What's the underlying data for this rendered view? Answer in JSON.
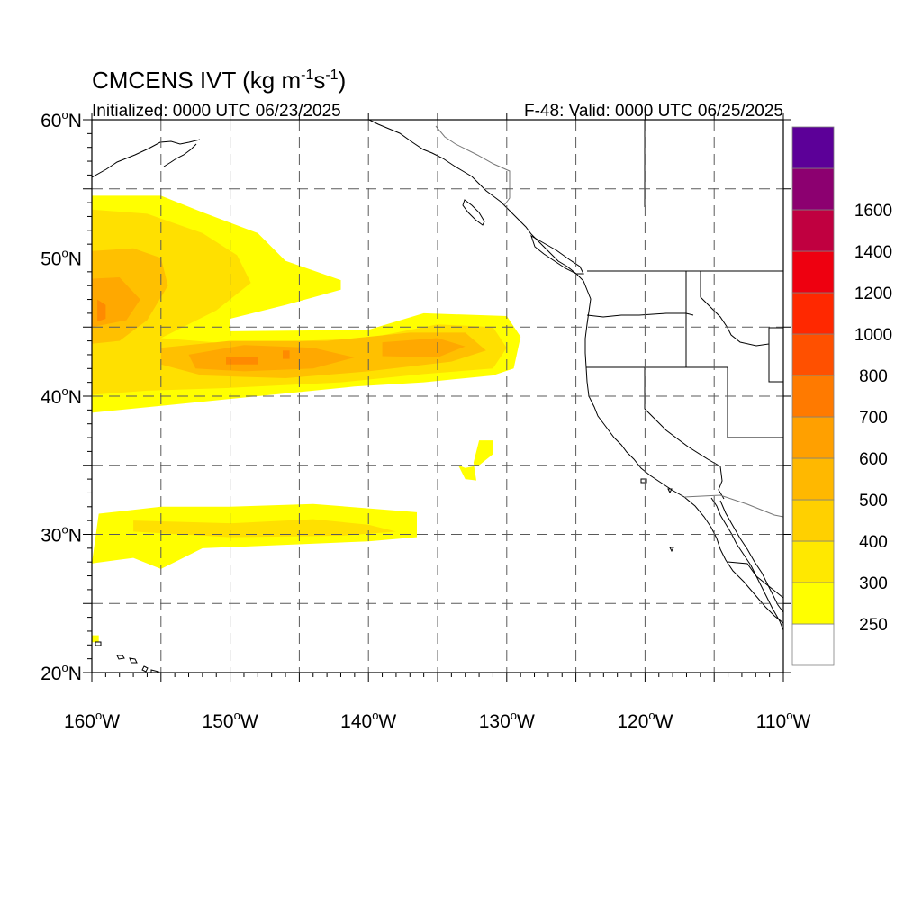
{
  "title": {
    "main": "CMCENS IVT (kg m",
    "exp1": "-1",
    "mid": "s",
    "exp2": "-1",
    "close": ")"
  },
  "subtitle_left": "Initialized: 0000 UTC 06/23/2025",
  "subtitle_right": "F-48: Valid: 0000 UTC 06/25/2025",
  "map": {
    "lon_range": [
      -160,
      -110
    ],
    "lat_range": [
      20,
      60
    ],
    "grid": "dashed",
    "lat_labels": [
      {
        "lat": 60,
        "num": "60",
        "hem": "N"
      },
      {
        "lat": 50,
        "num": "50",
        "hem": "N"
      },
      {
        "lat": 40,
        "num": "40",
        "hem": "N"
      },
      {
        "lat": 30,
        "num": "30",
        "hem": "N"
      },
      {
        "lat": 20,
        "num": "20",
        "hem": "N"
      }
    ],
    "lon_labels": [
      {
        "lon": -160,
        "num": "160",
        "hem": "W"
      },
      {
        "lon": -150,
        "num": "150",
        "hem": "W"
      },
      {
        "lon": -140,
        "num": "140",
        "hem": "W"
      },
      {
        "lon": -130,
        "num": "130",
        "hem": "W"
      },
      {
        "lon": -120,
        "num": "120",
        "hem": "W"
      },
      {
        "lon": -110,
        "num": "110",
        "hem": "W"
      }
    ],
    "ivt_regions": [
      {
        "level": 250,
        "color": "#ffff00",
        "points": [
          [
            -160,
            54.5
          ],
          [
            -155,
            54.5
          ],
          [
            -152,
            53.3
          ],
          [
            -148,
            51.8
          ],
          [
            -146,
            49.8
          ],
          [
            -142,
            48.4
          ],
          [
            -142,
            47.7
          ],
          [
            -146,
            46.6
          ],
          [
            -150,
            45.6
          ],
          [
            -150,
            44.7
          ],
          [
            -140,
            44.8
          ],
          [
            -136,
            46
          ],
          [
            -130,
            45.8
          ],
          [
            -129,
            44.3
          ],
          [
            -129.5,
            42
          ],
          [
            -131,
            41.5
          ],
          [
            -136,
            41
          ],
          [
            -141,
            40.7
          ],
          [
            -148,
            40
          ],
          [
            -155,
            39.3
          ],
          [
            -160,
            38.8
          ]
        ]
      },
      {
        "level": 300,
        "color": "#ffe000",
        "points": [
          [
            -160,
            53.5
          ],
          [
            -156,
            53.2
          ],
          [
            -152,
            51.8
          ],
          [
            -149.5,
            50.2
          ],
          [
            -148.5,
            48.2
          ],
          [
            -151,
            46.2
          ],
          [
            -155,
            44.2
          ],
          [
            -150,
            43.8
          ],
          [
            -140,
            44.2
          ],
          [
            -135,
            45.2
          ],
          [
            -131,
            45
          ],
          [
            -130,
            43.5
          ],
          [
            -131,
            42
          ],
          [
            -136,
            41.6
          ],
          [
            -142,
            41
          ],
          [
            -150,
            40.6
          ],
          [
            -156,
            40.4
          ],
          [
            -160,
            40.1
          ]
        ]
      },
      {
        "level": 400,
        "color": "#ffc000",
        "points": [
          [
            -160,
            50.5
          ],
          [
            -157,
            50.7
          ],
          [
            -155,
            50
          ],
          [
            -154.5,
            48
          ],
          [
            -156,
            45.5
          ],
          [
            -158,
            44
          ],
          [
            -160,
            43.8
          ]
        ]
      },
      {
        "level": 400,
        "color": "#ffc000",
        "points": [
          [
            -155,
            43.5
          ],
          [
            -150,
            44
          ],
          [
            -143,
            44
          ],
          [
            -137,
            44.6
          ],
          [
            -133,
            44.6
          ],
          [
            -131.5,
            43.3
          ],
          [
            -134,
            42.5
          ],
          [
            -140,
            41.8
          ],
          [
            -146,
            41.3
          ],
          [
            -152,
            41.5
          ],
          [
            -155,
            42.3
          ]
        ]
      },
      {
        "level": 500,
        "color": "#ffa800",
        "points": [
          [
            -160,
            48.5
          ],
          [
            -158,
            48.6
          ],
          [
            -156.5,
            47
          ],
          [
            -157.5,
            45.5
          ],
          [
            -160,
            45
          ]
        ]
      },
      {
        "level": 500,
        "color": "#ffa800",
        "points": [
          [
            -153,
            43
          ],
          [
            -149,
            43.7
          ],
          [
            -144,
            43.5
          ],
          [
            -141,
            42.8
          ],
          [
            -144,
            42
          ],
          [
            -149,
            41.8
          ],
          [
            -152.5,
            42
          ]
        ]
      },
      {
        "level": 500,
        "color": "#ffa800",
        "points": [
          [
            -139,
            43.9
          ],
          [
            -135,
            44.2
          ],
          [
            -133,
            43.6
          ],
          [
            -135,
            42.8
          ],
          [
            -139,
            42.9
          ]
        ]
      },
      {
        "level": 600,
        "color": "#ff8a00",
        "points": [
          [
            -159.6,
            47
          ],
          [
            -159,
            46.6
          ],
          [
            -159,
            45.6
          ],
          [
            -159.6,
            45.4
          ]
        ]
      },
      {
        "level": 600,
        "color": "#ff8a00",
        "points": [
          [
            -150.3,
            42.8
          ],
          [
            -148,
            42.8
          ],
          [
            -148,
            42.3
          ],
          [
            -150.3,
            42.3
          ]
        ]
      },
      {
        "level": 600,
        "color": "#ff8a00",
        "points": [
          [
            -146.2,
            43.3
          ],
          [
            -145.7,
            43.3
          ],
          [
            -145.7,
            42.7
          ],
          [
            -146.2,
            42.7
          ]
        ]
      },
      {
        "level": 250,
        "color": "#ffff00",
        "points": [
          [
            -159.5,
            31.5
          ],
          [
            -155,
            32
          ],
          [
            -150,
            32
          ],
          [
            -144,
            32.2
          ],
          [
            -136.5,
            31.6
          ],
          [
            -136.5,
            29.8
          ],
          [
            -140,
            29.5
          ],
          [
            -147,
            29.2
          ],
          [
            -152,
            29
          ],
          [
            -154,
            28
          ],
          [
            -155,
            27.5
          ],
          [
            -157,
            28.3
          ],
          [
            -160,
            27.9
          ]
        ]
      },
      {
        "level": 300,
        "color": "#ffe000",
        "points": [
          [
            -157,
            31
          ],
          [
            -150,
            30.8
          ],
          [
            -144,
            31.1
          ],
          [
            -140,
            30.7
          ],
          [
            -138,
            30.2
          ],
          [
            -142,
            29.9
          ],
          [
            -150,
            29.8
          ],
          [
            -157,
            30.2
          ]
        ]
      },
      {
        "level": 250,
        "color": "#ffff00",
        "points": [
          [
            -132,
            36.8
          ],
          [
            -131,
            36.8
          ],
          [
            -131,
            35.8
          ],
          [
            -132,
            35
          ],
          [
            -133,
            34.8
          ],
          [
            -133.5,
            35
          ],
          [
            -133,
            34
          ],
          [
            -132.2,
            33.9
          ],
          [
            -132.4,
            35.2
          ]
        ]
      },
      {
        "level": 250,
        "color": "#ffff00",
        "points": [
          [
            -160,
            22.7
          ],
          [
            -159.5,
            22.7
          ],
          [
            -159.5,
            22.2
          ],
          [
            -160,
            22.2
          ]
        ]
      }
    ]
  },
  "colorbar": {
    "levels": [
      {
        "value": "",
        "color": "#ffffff"
      },
      {
        "value": "250",
        "color": "#ffff00"
      },
      {
        "value": "300",
        "color": "#ffe800"
      },
      {
        "value": "400",
        "color": "#ffd000"
      },
      {
        "value": "500",
        "color": "#ffb800"
      },
      {
        "value": "600",
        "color": "#ffa000"
      },
      {
        "value": "700",
        "color": "#ff7a00"
      },
      {
        "value": "800",
        "color": "#ff5000"
      },
      {
        "value": "1000",
        "color": "#ff2800"
      },
      {
        "value": "1200",
        "color": "#ee0010"
      },
      {
        "value": "1400",
        "color": "#c00040"
      },
      {
        "value": "1600",
        "color": "#8c0070"
      },
      {
        "value": "",
        "color": "#5c0098"
      }
    ]
  }
}
